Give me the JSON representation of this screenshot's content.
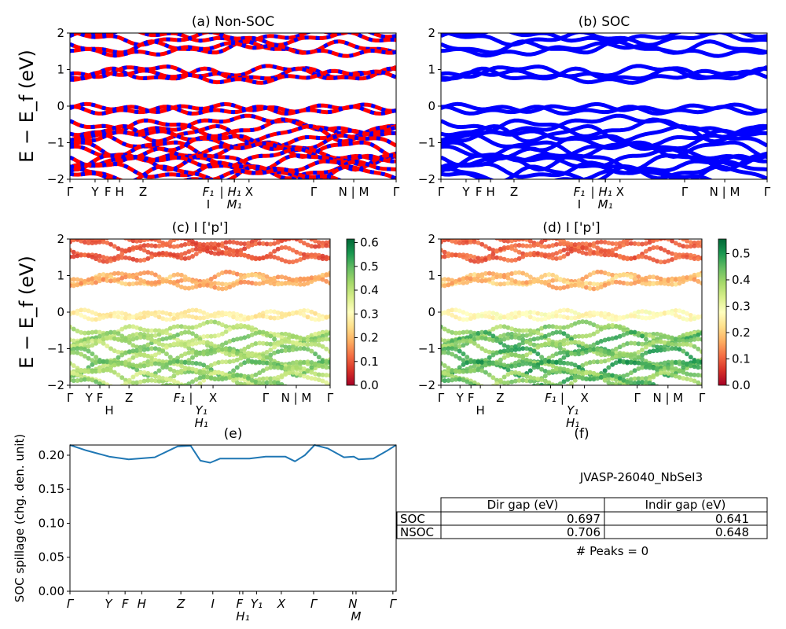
{
  "chart_data": [
    {
      "type": "line",
      "panel": "a",
      "title": "(a) Non-SOC",
      "ylabel": "E − E_f (eV)",
      "ylim": [
        -2,
        2
      ],
      "yticks": [
        "−2",
        "−1",
        "0",
        "1",
        "2"
      ],
      "xticks": [
        {
          "k": 0,
          "label": "Γ"
        },
        {
          "k": 0.077,
          "label": "Y"
        },
        {
          "k": 0.116,
          "label": "F"
        },
        {
          "k": 0.152,
          "label": "H"
        },
        {
          "k": 0.224,
          "label": "Z"
        },
        {
          "k": 0.424,
          "label": "F₁"
        },
        {
          "k": 0.424,
          "label": "I"
        },
        {
          "k": 0.465,
          "label": "|"
        },
        {
          "k": 0.504,
          "label": "H₁"
        },
        {
          "k": 0.504,
          "label": "M₁"
        },
        {
          "k": 0.549,
          "label": "X"
        },
        {
          "k": 0.747,
          "label": "Γ"
        },
        {
          "k": 0.87,
          "label": "N | M"
        },
        {
          "k": 1,
          "label": "Γ"
        }
      ],
      "colors": [
        "#ff0000",
        "#0000ff"
      ],
      "band_energies_gamma": [
        1.92,
        1.85,
        1.6,
        1.55,
        0.95,
        0.85,
        0.8,
        -0.05,
        -0.12,
        -0.5,
        -0.6,
        -0.75,
        -0.9,
        -1.0,
        -1.15,
        -1.25,
        -1.4,
        -1.5,
        -1.6,
        -1.75,
        -1.85,
        -1.95
      ]
    },
    {
      "type": "line",
      "panel": "b",
      "title": "(b) SOC",
      "ylim": [
        -2,
        2
      ],
      "yticks": [
        "−2",
        "−1",
        "0",
        "1",
        "2"
      ],
      "xticks": [
        {
          "k": 0,
          "label": "Γ"
        },
        {
          "k": 0.077,
          "label": "Y"
        },
        {
          "k": 0.116,
          "label": "F"
        },
        {
          "k": 0.152,
          "label": "H"
        },
        {
          "k": 0.224,
          "label": "Z"
        },
        {
          "k": 0.424,
          "label": "F₁"
        },
        {
          "k": 0.424,
          "label": "I"
        },
        {
          "k": 0.465,
          "label": "|"
        },
        {
          "k": 0.504,
          "label": "H₁"
        },
        {
          "k": 0.504,
          "label": "M₁"
        },
        {
          "k": 0.549,
          "label": "X"
        },
        {
          "k": 0.747,
          "label": "Γ"
        },
        {
          "k": 0.87,
          "label": "N | M"
        },
        {
          "k": 1,
          "label": "Γ"
        }
      ],
      "colors": [
        "#0000ff"
      ],
      "band_energies_gamma": [
        1.92,
        1.85,
        1.6,
        1.55,
        0.95,
        0.85,
        0.8,
        -0.05,
        -0.12,
        -0.5,
        -0.6,
        -0.75,
        -0.9,
        -1.0,
        -1.15,
        -1.25,
        -1.4,
        -1.5,
        -1.6,
        -1.75,
        -1.85,
        -1.95
      ]
    },
    {
      "type": "scatter",
      "panel": "c",
      "title": "(c)  I ['p']",
      "ylabel": "E − E_f (eV)",
      "ylim": [
        -2,
        2
      ],
      "yticks": [
        "−2",
        "−1",
        "0",
        "1",
        "2"
      ],
      "colormap": "RdYlGn",
      "clim": [
        0,
        0.615
      ],
      "colorbar_ticks": [
        "0.0",
        "0.1",
        "0.2",
        "0.3",
        "0.4",
        "0.5",
        "0.6"
      ],
      "xticks": [
        {
          "k": 0,
          "label": "Γ"
        },
        {
          "k": 0.073,
          "label": "Y"
        },
        {
          "k": 0.115,
          "label": "F"
        },
        {
          "k": 0.151,
          "label": "H"
        },
        {
          "k": 0.227,
          "label": "Z"
        },
        {
          "k": 0.42,
          "label": "F₁"
        },
        {
          "k": 0.465,
          "label": "|"
        },
        {
          "k": 0.505,
          "label": "Y₁"
        },
        {
          "k": 0.505,
          "label": "H₁"
        },
        {
          "k": 0.55,
          "label": "X"
        },
        {
          "k": 0.752,
          "label": "Γ"
        },
        {
          "k": 0.87,
          "label": "N | M"
        },
        {
          "k": 1,
          "label": "Γ"
        }
      ]
    },
    {
      "type": "scatter",
      "panel": "d",
      "title": "(d) I ['p']",
      "ylim": [
        -2,
        2
      ],
      "yticks": [
        "−2",
        "−1",
        "0",
        "1",
        "2"
      ],
      "colormap": "RdYlGn",
      "clim": [
        0,
        0.555
      ],
      "colorbar_ticks": [
        "0.0",
        "0.1",
        "0.2",
        "0.3",
        "0.4",
        "0.5"
      ],
      "xticks": [
        {
          "k": 0,
          "label": "Γ"
        },
        {
          "k": 0.073,
          "label": "Y"
        },
        {
          "k": 0.115,
          "label": "F"
        },
        {
          "k": 0.151,
          "label": "H"
        },
        {
          "k": 0.227,
          "label": "Z"
        },
        {
          "k": 0.42,
          "label": "F₁"
        },
        {
          "k": 0.465,
          "label": "|"
        },
        {
          "k": 0.505,
          "label": "Y₁"
        },
        {
          "k": 0.505,
          "label": "H₁"
        },
        {
          "k": 0.55,
          "label": "X"
        },
        {
          "k": 0.752,
          "label": "Γ"
        },
        {
          "k": 0.87,
          "label": "N | M"
        },
        {
          "k": 1,
          "label": "Γ"
        }
      ]
    },
    {
      "type": "line",
      "panel": "e",
      "title": "(e)",
      "ylabel": "SOC spillage (chg. den. unit)",
      "ylim": [
        0,
        0.215
      ],
      "yticks": [
        "0.00",
        "0.05",
        "0.10",
        "0.15",
        "0.20"
      ],
      "ytick_values": [
        0,
        0.05,
        0.1,
        0.15,
        0.2
      ],
      "color": "#1f77b4",
      "xticks": [
        {
          "k": 0,
          "label": "Γ"
        },
        {
          "k": 0.118,
          "label": "Y"
        },
        {
          "k": 0.169,
          "label": "F"
        },
        {
          "k": 0.22,
          "label": "H"
        },
        {
          "k": 0.34,
          "label": "Z"
        },
        {
          "k": 0.438,
          "label": "I"
        },
        {
          "k": 0.52,
          "label": "F"
        },
        {
          "k": 0.53,
          "label": "H₁"
        },
        {
          "k": 0.572,
          "label": "Y₁"
        },
        {
          "k": 0.648,
          "label": "X"
        },
        {
          "k": 0.747,
          "label": "Γ"
        },
        {
          "k": 0.867,
          "label": "N"
        },
        {
          "k": 0.877,
          "label": "M"
        },
        {
          "k": 0.99,
          "label": "Γ"
        }
      ],
      "x": [
        0,
        0.05,
        0.12,
        0.18,
        0.26,
        0.33,
        0.37,
        0.4,
        0.43,
        0.46,
        0.55,
        0.6,
        0.66,
        0.69,
        0.72,
        0.75,
        0.79,
        0.84,
        0.87,
        0.885,
        0.93,
        0.97,
        1
      ],
      "y": [
        0.215,
        0.207,
        0.198,
        0.194,
        0.197,
        0.213,
        0.214,
        0.192,
        0.189,
        0.195,
        0.195,
        0.198,
        0.198,
        0.191,
        0.2,
        0.215,
        0.21,
        0.197,
        0.198,
        0.194,
        0.195,
        0.206,
        0.215
      ]
    }
  ],
  "panel_f": {
    "title": "(f)",
    "material": "JVASP-26040_NbSeI3",
    "table": {
      "columns": [
        "Dir gap (eV)",
        "Indir gap (eV)"
      ],
      "rows": [
        {
          "label": "SOC",
          "values": [
            "0.697",
            "0.641"
          ]
        },
        {
          "label": "NSOC",
          "values": [
            "0.706",
            "0.648"
          ]
        }
      ]
    },
    "peaks": "# Peaks = 0"
  }
}
